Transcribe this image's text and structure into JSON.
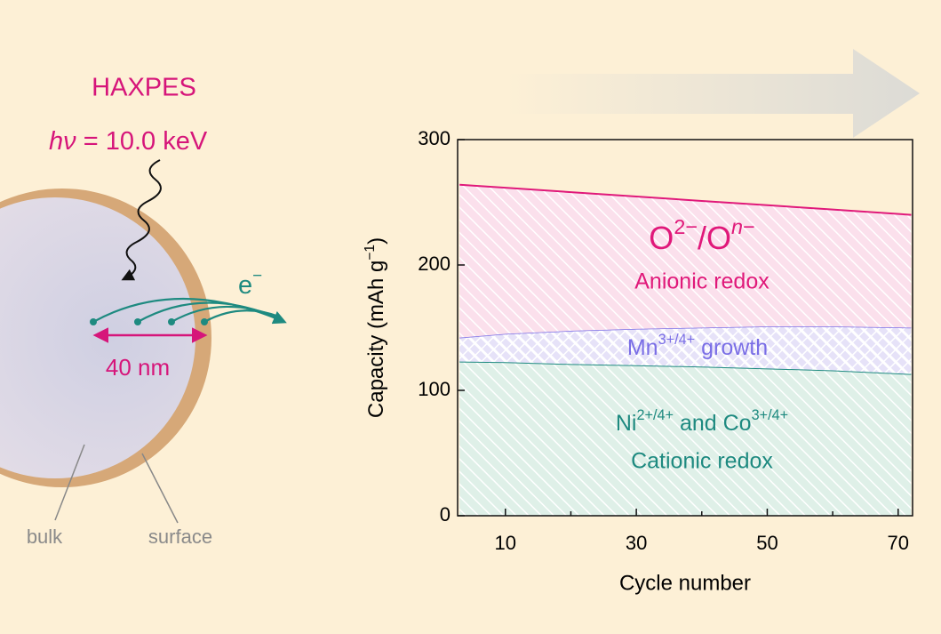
{
  "diagram": {
    "technique": "HAXPES",
    "energy": [
      {
        "text": "h",
        "italic": true
      },
      {
        "text": "ν",
        "italic": true
      },
      {
        "text": " = 10.0 keV"
      }
    ],
    "electron": [
      {
        "text": "e"
      },
      {
        "text": "−",
        "sup": true
      }
    ],
    "depth": "40 nm",
    "bulk": "bulk",
    "surface": "surface"
  },
  "chart_data": {
    "type": "stacked-area",
    "x_label": "Cycle number",
    "y_label": [
      {
        "text": "Capacity (mAh g"
      },
      {
        "text": "−1",
        "sup": true
      },
      {
        "text": ")"
      }
    ],
    "x": [
      3,
      10,
      20,
      30,
      40,
      50,
      60,
      72
    ],
    "xlim": [
      2.7,
      72.2
    ],
    "xticks": [
      10,
      30,
      50,
      70
    ],
    "xminorticks": [
      20,
      40,
      60
    ],
    "ylim": [
      0,
      300
    ],
    "yticks": [
      0,
      100,
      200,
      300
    ],
    "series": [
      {
        "name": "Cationic redox",
        "color": "#1e8a80",
        "fill": "#dff0e8",
        "label": [
          {
            "text": "Ni"
          },
          {
            "text": "2+/4+",
            "sup": true
          },
          {
            "text": " and Co"
          },
          {
            "text": "3+/4+",
            "sup": true
          }
        ],
        "values": [
          123,
          122.5,
          121,
          120,
          119,
          117.5,
          116,
          113
        ]
      },
      {
        "color": "#7a6ee6",
        "fill": "#e6e2f8",
        "label": [
          {
            "text": "Mn"
          },
          {
            "text": "3+/4+",
            "sup": true
          },
          {
            "text": " growth"
          }
        ],
        "values": [
          19,
          22.5,
          26.5,
          29,
          31,
          33.5,
          35,
          37
        ]
      },
      {
        "name": "Anionic redox",
        "color": "#e0197a",
        "fill": "#fbe0ec",
        "label": [
          {
            "text": "O"
          },
          {
            "text": "2−",
            "sup": true
          },
          {
            "text": "/O"
          },
          {
            "text": "n",
            "sup": true,
            "italic": true
          },
          {
            "text": "−",
            "sup": true
          }
        ],
        "values": [
          122,
          116.6,
          110.6,
          105.6,
          101.1,
          96.7,
          93.2,
          90
        ]
      }
    ]
  }
}
